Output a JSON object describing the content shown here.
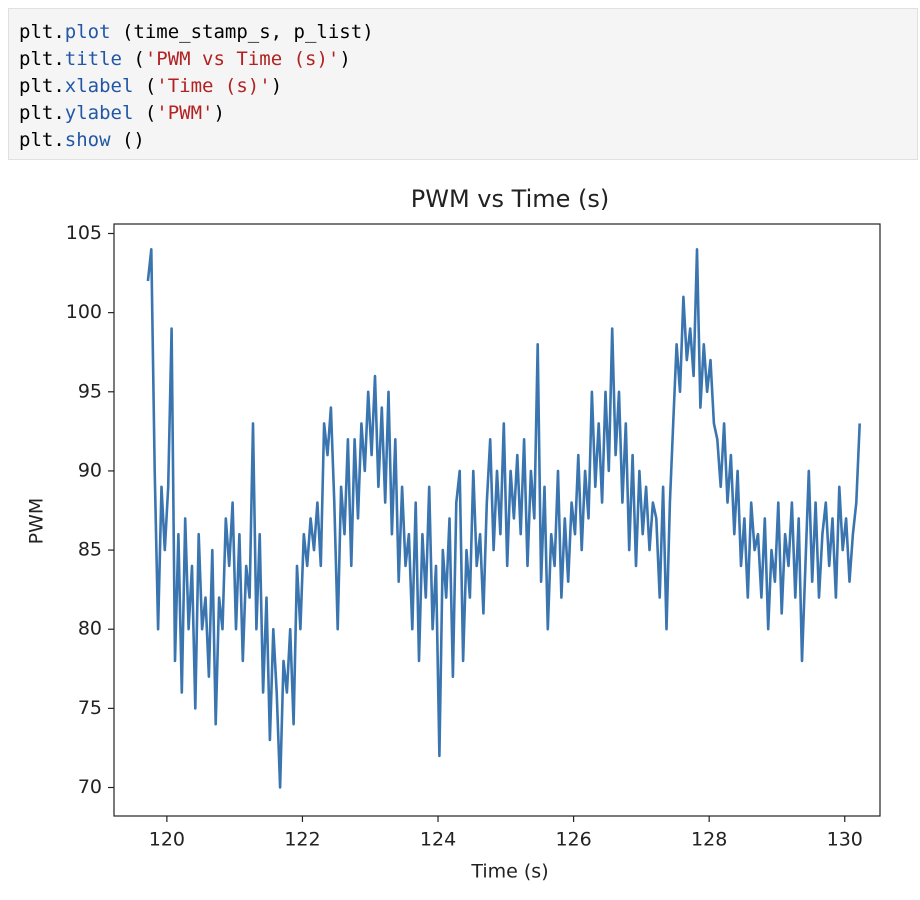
{
  "code": {
    "lines": [
      [
        "plt.",
        "plot",
        " (time_stamp_s, p_list)"
      ],
      [
        "plt.",
        "title",
        " (",
        "'PWM vs Time (s)'",
        ")"
      ],
      [
        "plt.",
        "xlabel",
        " (",
        "'Time (s)'",
        ")"
      ],
      [
        "plt.",
        "ylabel",
        " (",
        "'PWM'",
        ")"
      ],
      [
        "plt.",
        "show",
        " ()"
      ]
    ]
  },
  "chart_data": {
    "type": "line",
    "title": "PWM vs Time (s)",
    "x_label": "Time (s)",
    "y_label": "PWM",
    "color": "#3a75b0",
    "x": [
      119.72,
      119.77,
      119.82,
      119.87,
      119.92,
      119.97,
      120.02,
      120.07,
      120.12,
      120.17,
      120.22,
      120.27,
      120.32,
      120.37,
      120.42,
      120.47,
      120.52,
      120.57,
      120.62,
      120.67,
      120.72,
      120.77,
      120.82,
      120.87,
      120.92,
      120.97,
      121.02,
      121.07,
      121.12,
      121.17,
      121.22,
      121.27,
      121.32,
      121.37,
      121.42,
      121.47,
      121.52,
      121.57,
      121.62,
      121.67,
      121.72,
      121.77,
      121.82,
      121.87,
      121.92,
      121.97,
      122.02,
      122.07,
      122.12,
      122.17,
      122.22,
      122.27,
      122.32,
      122.37,
      122.42,
      122.47,
      122.52,
      122.57,
      122.62,
      122.67,
      122.72,
      122.77,
      122.82,
      122.87,
      122.92,
      122.97,
      123.02,
      123.07,
      123.12,
      123.17,
      123.22,
      123.27,
      123.32,
      123.37,
      123.42,
      123.47,
      123.52,
      123.57,
      123.62,
      123.67,
      123.72,
      123.77,
      123.82,
      123.87,
      123.92,
      123.97,
      124.02,
      124.07,
      124.12,
      124.17,
      124.22,
      124.27,
      124.32,
      124.37,
      124.42,
      124.47,
      124.52,
      124.57,
      124.62,
      124.67,
      124.72,
      124.77,
      124.82,
      124.87,
      124.92,
      124.97,
      125.02,
      125.07,
      125.12,
      125.17,
      125.22,
      125.27,
      125.32,
      125.37,
      125.42,
      125.47,
      125.52,
      125.57,
      125.62,
      125.67,
      125.72,
      125.77,
      125.82,
      125.87,
      125.92,
      125.97,
      126.02,
      126.07,
      126.12,
      126.17,
      126.22,
      126.27,
      126.32,
      126.37,
      126.42,
      126.47,
      126.52,
      126.57,
      126.62,
      126.67,
      126.72,
      126.77,
      126.82,
      126.87,
      126.92,
      126.97,
      127.02,
      127.07,
      127.12,
      127.17,
      127.22,
      127.27,
      127.32,
      127.37,
      127.42,
      127.47,
      127.52,
      127.57,
      127.62,
      127.67,
      127.72,
      127.77,
      127.82,
      127.87,
      127.92,
      127.97,
      128.02,
      128.07,
      128.12,
      128.17,
      128.22,
      128.27,
      128.32,
      128.37,
      128.42,
      128.47,
      128.52,
      128.57,
      128.62,
      128.67,
      128.72,
      128.77,
      128.82,
      128.87,
      128.92,
      128.97,
      129.02,
      129.07,
      129.12,
      129.17,
      129.22,
      129.27,
      129.32,
      129.37,
      129.42,
      129.47,
      129.52,
      129.57,
      129.62,
      129.67,
      129.72,
      129.77,
      129.82,
      129.87,
      129.92,
      129.97,
      130.02,
      130.07,
      130.12,
      130.17,
      130.22
    ],
    "values": [
      102,
      104,
      90,
      80,
      89,
      85,
      89,
      99,
      78,
      86,
      76,
      87,
      80,
      84,
      75,
      86,
      80,
      82,
      77,
      85,
      74,
      82,
      80,
      87,
      84,
      88,
      80,
      86,
      78,
      84,
      82,
      93,
      80,
      86,
      76,
      82,
      73,
      80,
      76,
      70,
      78,
      76,
      80,
      74,
      84,
      80,
      86,
      84,
      87,
      85,
      88,
      84,
      93,
      91,
      94,
      88,
      80,
      89,
      86,
      92,
      84,
      92,
      87,
      93,
      90,
      95,
      91,
      96,
      89,
      94,
      88,
      95,
      86,
      92,
      83,
      89,
      84,
      86,
      80,
      88,
      78,
      86,
      82,
      89,
      80,
      84,
      72,
      85,
      82,
      87,
      77,
      88,
      90,
      78,
      85,
      82,
      90,
      84,
      86,
      81,
      88,
      92,
      85,
      90,
      86,
      93,
      84,
      90,
      87,
      91,
      86,
      92,
      84,
      90,
      87,
      98,
      83,
      89,
      80,
      86,
      84,
      90,
      82,
      87,
      83,
      88,
      86,
      91,
      85,
      90,
      87,
      95,
      89,
      93,
      88,
      95,
      90,
      99,
      91,
      95,
      88,
      93,
      85,
      91,
      84,
      90,
      86,
      89,
      85,
      88,
      87,
      82,
      89,
      80,
      88,
      93,
      98,
      95,
      101,
      97,
      99,
      96,
      104,
      94,
      98,
      95,
      97,
      93,
      92,
      89,
      93,
      88,
      91,
      86,
      90,
      84,
      87,
      82,
      88,
      85,
      86,
      82,
      87,
      80,
      85,
      83,
      88,
      81,
      86,
      84,
      88,
      82,
      87,
      78,
      84,
      90,
      83,
      88,
      82,
      86,
      88,
      84,
      87,
      82,
      89,
      85,
      87,
      83,
      86,
      88,
      93
    ],
    "xlim": [
      119.22,
      130.52
    ],
    "ylim": [
      68.2,
      105.6
    ],
    "xticks": [
      120,
      122,
      124,
      126,
      128,
      130
    ],
    "yticks": [
      70,
      75,
      80,
      85,
      90,
      95,
      100,
      105
    ]
  }
}
